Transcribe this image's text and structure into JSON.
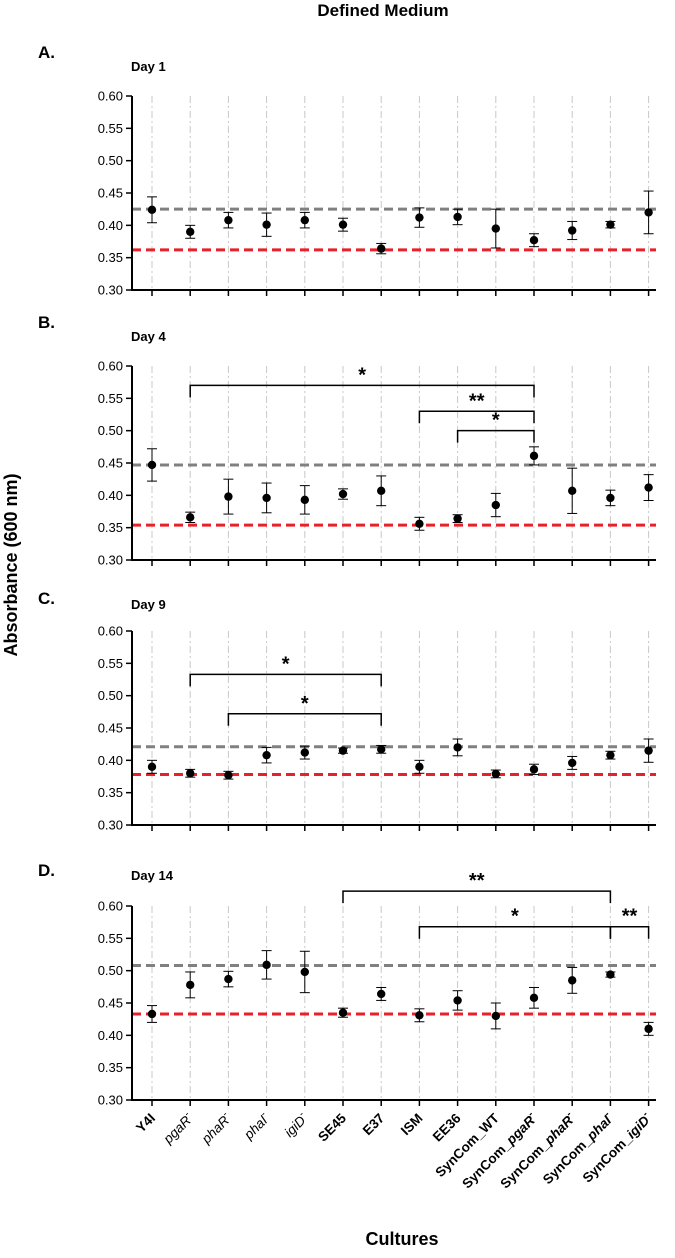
{
  "chart_data": {
    "type": "scatter",
    "title": "Defined Medium",
    "xlabel": "Cultures",
    "ylabel": "Absorbance (600 nm)",
    "ylim": [
      0.3,
      0.6
    ],
    "yticks": [
      "0.60",
      "0.55",
      "0.50",
      "0.45",
      "0.40",
      "0.35",
      "0.30"
    ],
    "categories": [
      {
        "name": "Y4I",
        "italic": false
      },
      {
        "name": "pgaR",
        "super": "-",
        "italic": true
      },
      {
        "name": "phaR",
        "super": "-",
        "italic": true
      },
      {
        "name": "phaI",
        "super": "-",
        "italic": true
      },
      {
        "name": "igiD",
        "super": "-",
        "italic": true
      },
      {
        "name": "SE45",
        "italic": false
      },
      {
        "name": "E37",
        "italic": false
      },
      {
        "name": "ISM",
        "italic": false
      },
      {
        "name": "EE36",
        "italic": false
      },
      {
        "name": "SynCom_WT",
        "italic": false
      },
      {
        "name": "SynCom_",
        "italicPart": "pgaR",
        "super": "-"
      },
      {
        "name": "SynCom_",
        "italicPart": "phaR",
        "super": "-"
      },
      {
        "name": "SynCom_",
        "italicPart": "phaI",
        "super": "-"
      },
      {
        "name": "SynCom_",
        "italicPart": "igiD",
        "super": "-"
      }
    ],
    "panels": [
      {
        "letter": "A.",
        "label": "Day 1",
        "grey_line": 0.425,
        "red_line": 0.362,
        "values": [
          0.424,
          0.39,
          0.408,
          0.401,
          0.408,
          0.401,
          0.364,
          0.412,
          0.413,
          0.395,
          0.377,
          0.392,
          0.401,
          0.42
        ],
        "errors": [
          0.02,
          0.01,
          0.012,
          0.018,
          0.012,
          0.01,
          0.008,
          0.015,
          0.012,
          0.03,
          0.01,
          0.014,
          0.005,
          0.033
        ],
        "brackets": []
      },
      {
        "letter": "B.",
        "label": "Day 4",
        "grey_line": 0.447,
        "red_line": 0.354,
        "values": [
          0.447,
          0.366,
          0.398,
          0.396,
          0.393,
          0.402,
          0.407,
          0.356,
          0.364,
          0.385,
          0.461,
          0.407,
          0.396,
          0.412
        ],
        "errors": [
          0.025,
          0.008,
          0.027,
          0.023,
          0.022,
          0.008,
          0.023,
          0.01,
          0.006,
          0.018,
          0.014,
          0.035,
          0.012,
          0.02
        ],
        "brackets": [
          {
            "from": 1,
            "to": 10,
            "y": 0.57,
            "label": "*"
          },
          {
            "from": 7,
            "to": 10,
            "y": 0.53,
            "label": "**"
          },
          {
            "from": 8,
            "to": 10,
            "y": 0.5,
            "label": "*"
          }
        ]
      },
      {
        "letter": "C.",
        "label": "Day 9",
        "grey_line": 0.421,
        "red_line": 0.378,
        "values": [
          0.39,
          0.38,
          0.377,
          0.408,
          0.412,
          0.415,
          0.417,
          0.39,
          0.42,
          0.379,
          0.386,
          0.396,
          0.408,
          0.415
        ],
        "errors": [
          0.01,
          0.006,
          0.006,
          0.012,
          0.01,
          0.004,
          0.006,
          0.01,
          0.013,
          0.006,
          0.008,
          0.01,
          0.006,
          0.018
        ],
        "brackets": [
          {
            "from": 1,
            "to": 6,
            "y": 0.533,
            "label": "*"
          },
          {
            "from": 2,
            "to": 6,
            "y": 0.472,
            "label": "*"
          }
        ]
      },
      {
        "letter": "D.",
        "label": "Day 14",
        "grey_line": 0.508,
        "red_line": 0.433,
        "values": [
          0.433,
          0.478,
          0.487,
          0.509,
          0.498,
          0.435,
          0.464,
          0.431,
          0.454,
          0.43,
          0.458,
          0.485,
          0.494,
          0.41
        ],
        "errors": [
          0.013,
          0.02,
          0.012,
          0.022,
          0.032,
          0.007,
          0.01,
          0.01,
          0.015,
          0.02,
          0.016,
          0.02,
          0.004,
          0.01
        ],
        "brackets": [
          {
            "from": 5,
            "to": 12,
            "y": 0.623,
            "label": "**"
          },
          {
            "from": 7,
            "to": 12,
            "y": 0.568,
            "label": "*"
          },
          {
            "from": 12,
            "to": 13,
            "y": 0.568,
            "label": "**"
          }
        ]
      }
    ],
    "colors": {
      "grey_line": "#808080",
      "red_line": "#e8202a",
      "grid": "#c8c8c8",
      "point": "#000000"
    }
  }
}
